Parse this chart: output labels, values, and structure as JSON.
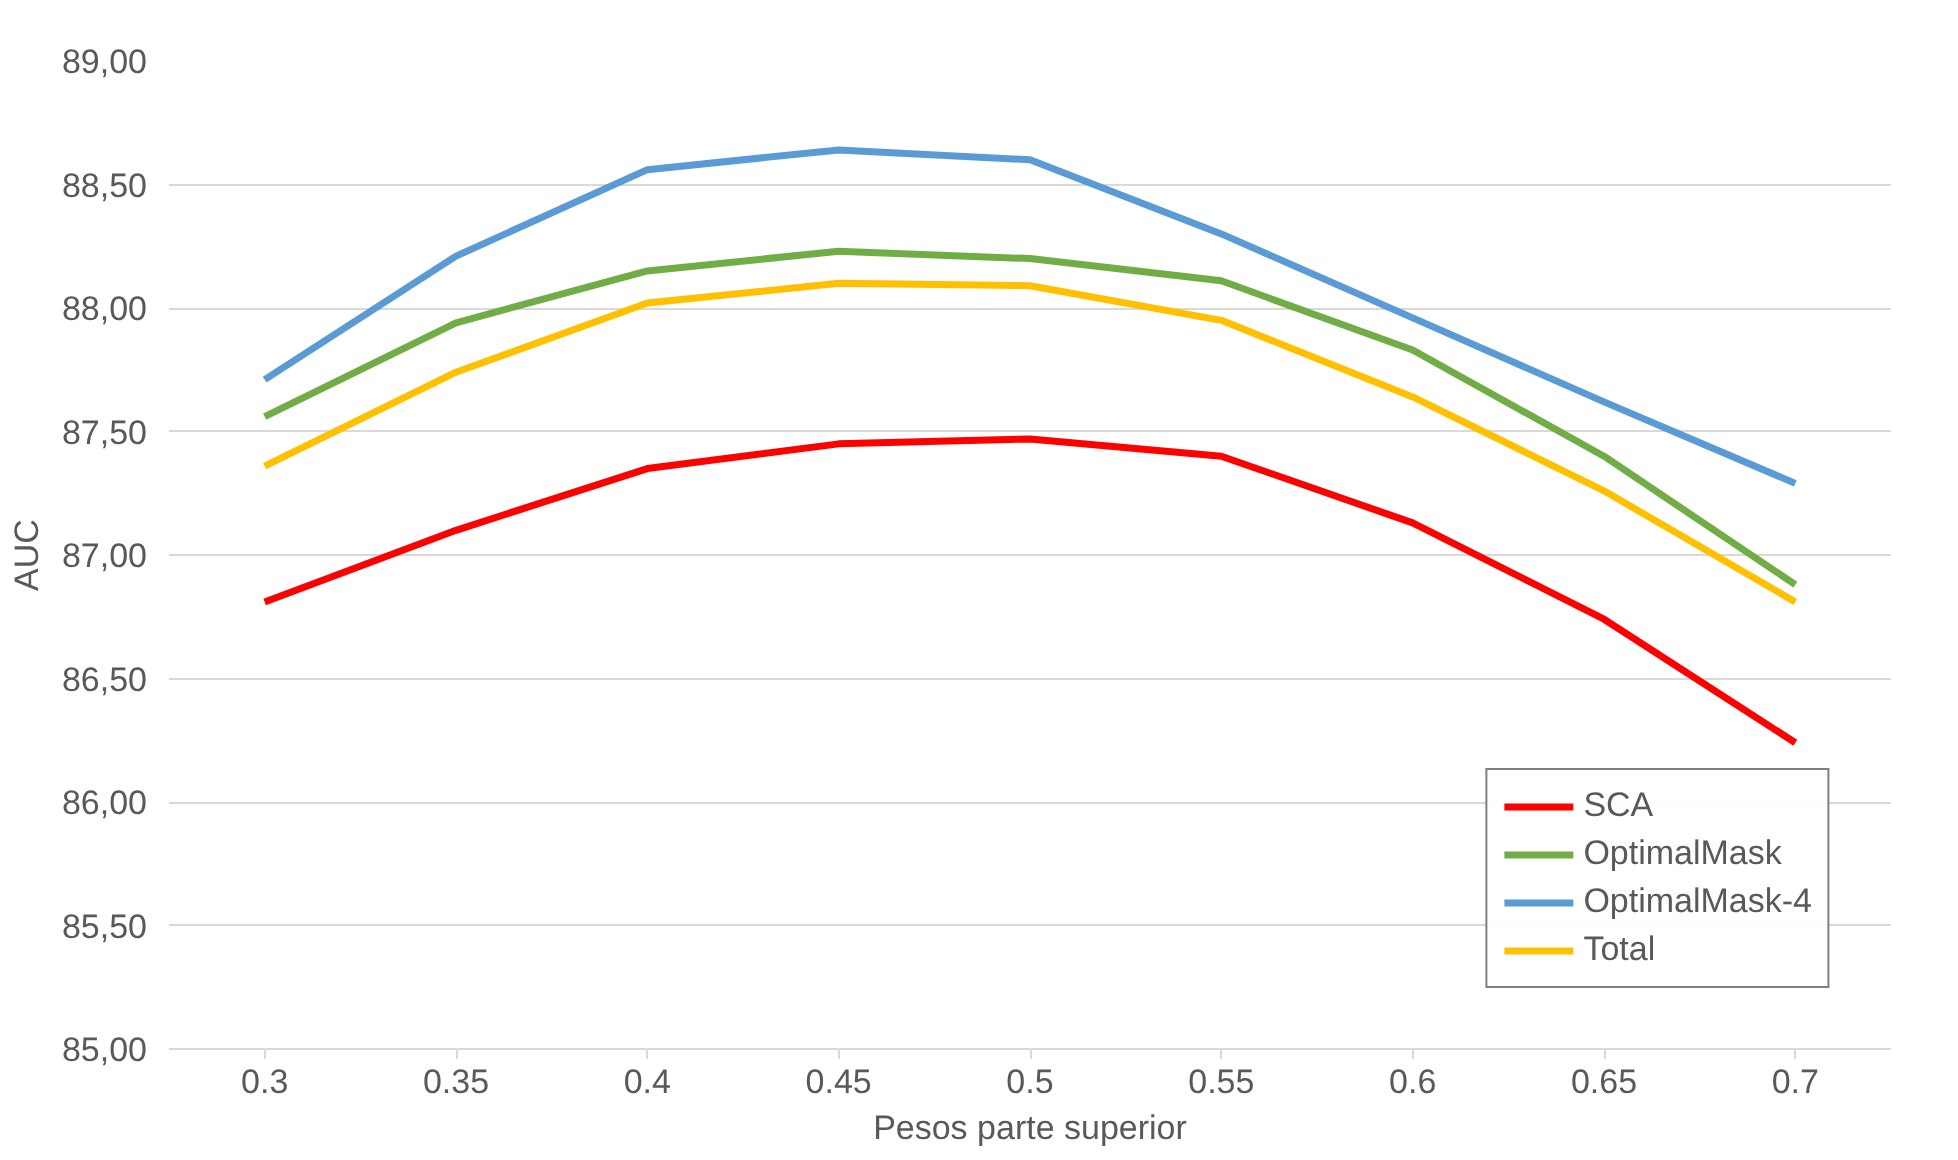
{
  "chart_data": {
    "type": "line",
    "xlabel": "Pesos parte superior",
    "ylabel": "AUC",
    "categories": [
      "0.3",
      "0.35",
      "0.4",
      "0.45",
      "0.5",
      "0.55",
      "0.6",
      "0.65",
      "0.7"
    ],
    "series": [
      {
        "name": "SCA",
        "color": "#ff0000",
        "values": [
          86.81,
          87.1,
          87.35,
          87.45,
          87.47,
          87.4,
          87.13,
          86.74,
          86.24
        ]
      },
      {
        "name": "OptimalMask",
        "color": "#70ad47",
        "values": [
          87.56,
          87.94,
          88.15,
          88.23,
          88.2,
          88.11,
          87.83,
          87.4,
          86.88
        ]
      },
      {
        "name": "OptimalMask-4",
        "color": "#5b9bd5",
        "values": [
          87.71,
          88.21,
          88.56,
          88.64,
          88.6,
          88.3,
          87.96,
          87.62,
          87.29
        ]
      },
      {
        "name": "Total",
        "color": "#ffc000",
        "values": [
          87.36,
          87.74,
          88.02,
          88.1,
          88.09,
          87.95,
          87.64,
          87.26,
          86.81
        ]
      }
    ],
    "ylim": [
      85,
      89
    ],
    "yticks": [
      {
        "value": 85,
        "label": "85,00"
      },
      {
        "value": 85.5,
        "label": "85,50"
      },
      {
        "value": 86,
        "label": "86,00"
      },
      {
        "value": 86.5,
        "label": "86,50"
      },
      {
        "value": 87,
        "label": "87,00"
      },
      {
        "value": 87.5,
        "label": "87,50"
      },
      {
        "value": 88,
        "label": "88,00"
      },
      {
        "value": 88.5,
        "label": "88,50"
      },
      {
        "value": 89,
        "label": "89,00"
      }
    ],
    "grid": "y",
    "legend": "bottom right",
    "marker": "none",
    "line_style": "solid"
  }
}
